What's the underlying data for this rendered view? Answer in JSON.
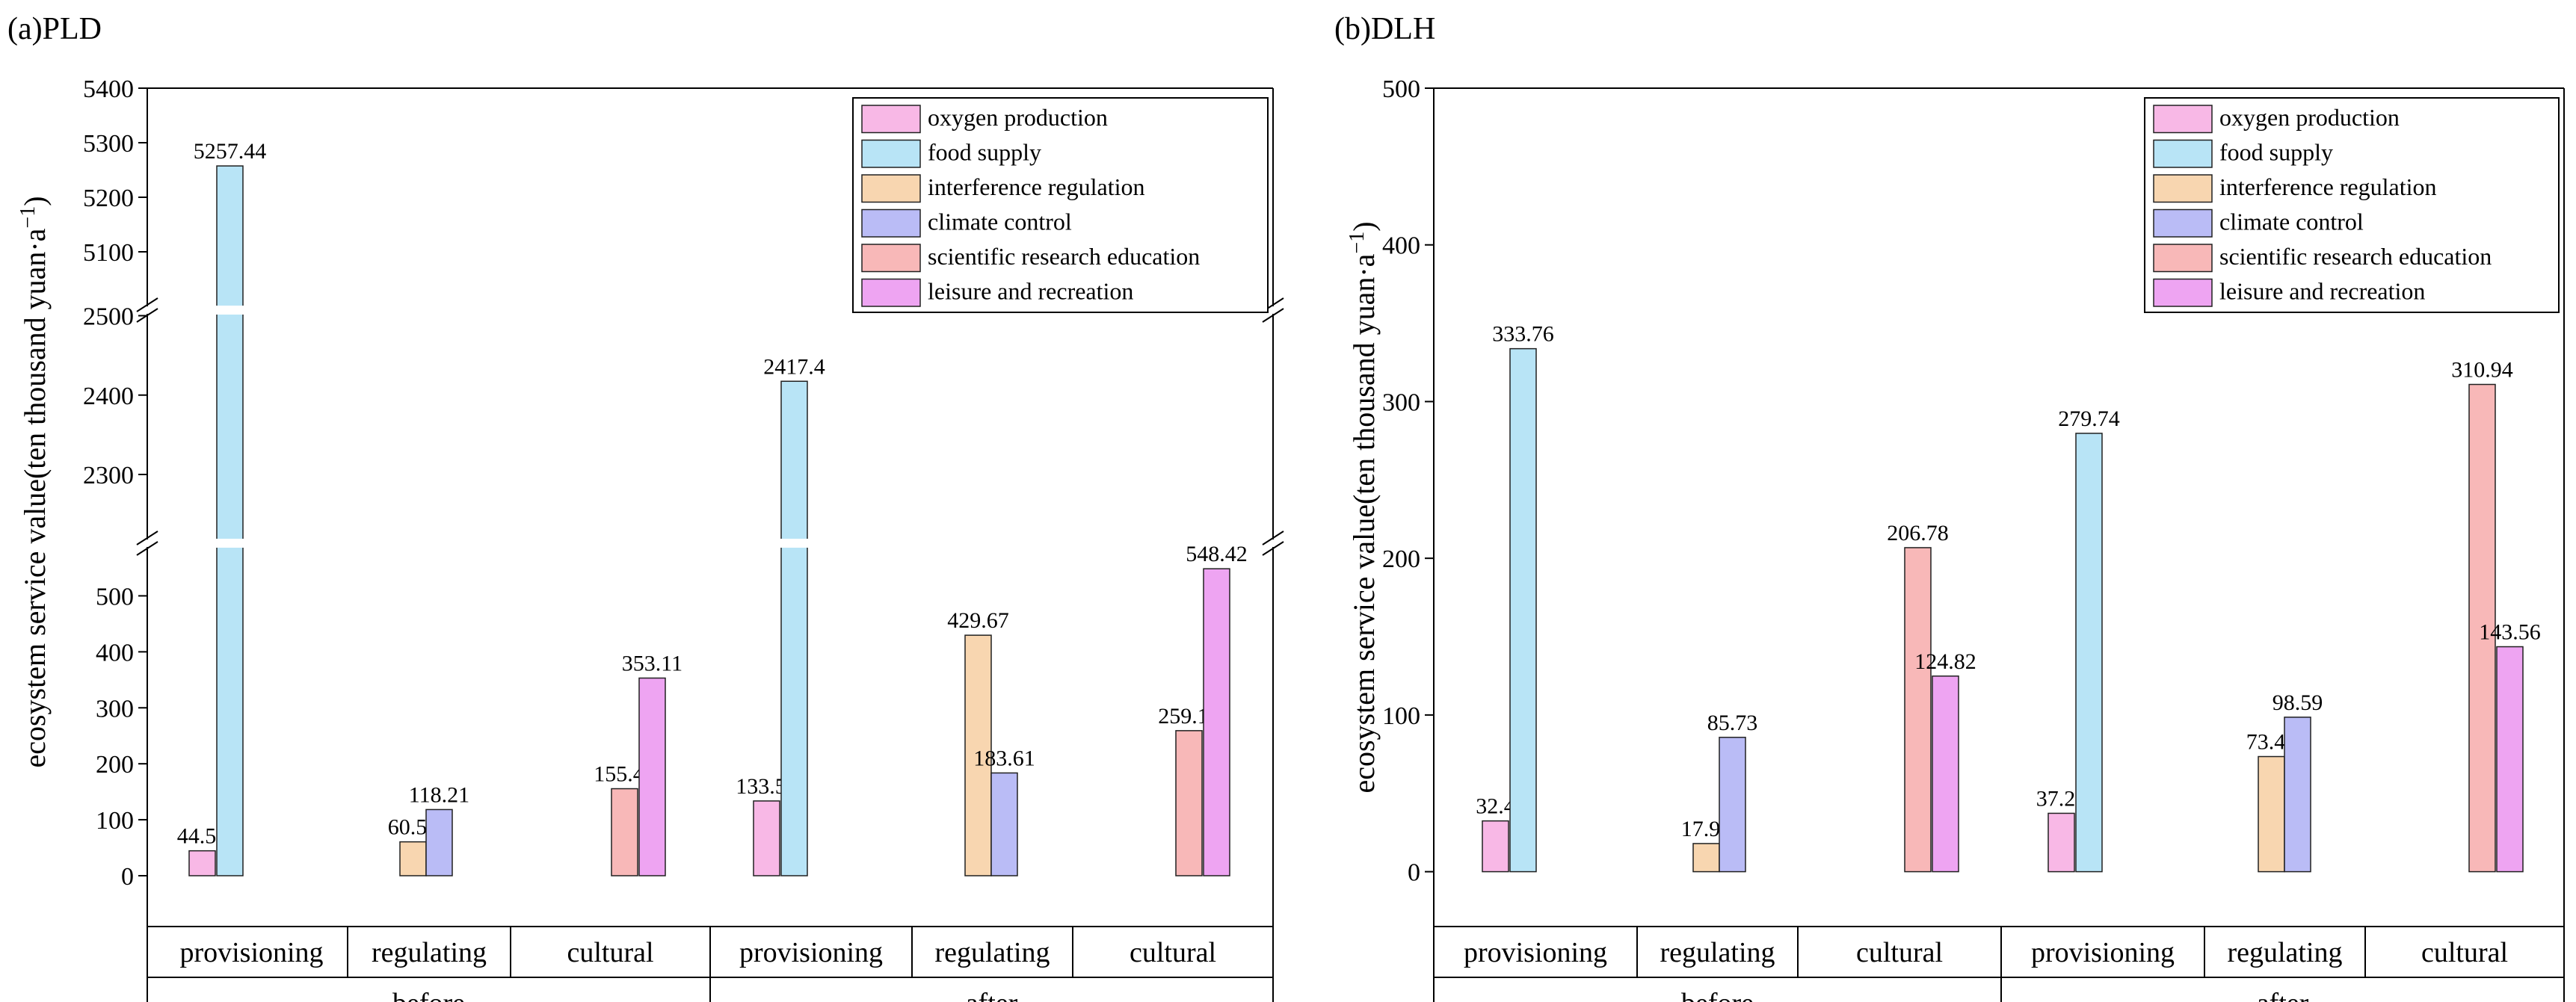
{
  "colors": {
    "oxygen production": "#f8b8e6",
    "food supply": "#b8e4f6",
    "interference regulation": "#f8d6b0",
    "climate control": "#babcf6",
    "scientific research education": "#f8b8b8",
    "leisure and recreation": "#eea4f2"
  },
  "chart_data": [
    {
      "type": "bar",
      "title": "(a)PLD",
      "ylabel": "ecosystem service value(ten thousand yuan·a",
      "ylabel_sup": "−1",
      "ylabel_close": ")",
      "axis_breaks": [
        [
          570,
          2220
        ],
        [
          2540,
          5000
        ]
      ],
      "ylim": [
        0,
        5400
      ],
      "yticks": [
        0,
        100,
        200,
        300,
        400,
        500,
        2300,
        2400,
        2500,
        5100,
        5200,
        5300,
        5400
      ],
      "legend": [
        "oxygen production",
        "food supply",
        "interference regulation",
        "climate control",
        "scientific research education",
        "leisure and recreation"
      ],
      "groups": [
        {
          "label": "before",
          "categories": [
            {
              "label": "provisioning",
              "bars": [
                {
                  "series": "oxygen production",
                  "value": 44.53,
                  "label": "44.53"
                },
                {
                  "series": "food supply",
                  "value": 5257.44,
                  "label": "5257.44"
                }
              ]
            },
            {
              "label": "regulating",
              "bars": [
                {
                  "series": "interference regulation",
                  "value": 60.53,
                  "label": "60.53"
                },
                {
                  "series": "climate control",
                  "value": 118.21,
                  "label": "118.21"
                }
              ]
            },
            {
              "label": "cultural",
              "bars": [
                {
                  "series": "scientific research education",
                  "value": 155.47,
                  "label": "155.47"
                },
                {
                  "series": "leisure and recreation",
                  "value": 353.11,
                  "label": "353.11"
                }
              ]
            }
          ]
        },
        {
          "label": "after",
          "categories": [
            {
              "label": "provisioning",
              "bars": [
                {
                  "series": "oxygen production",
                  "value": 133.58,
                  "label": "133.58"
                },
                {
                  "series": "food supply",
                  "value": 2417.4,
                  "label": "2417.4"
                }
              ]
            },
            {
              "label": "regulating",
              "bars": [
                {
                  "series": "interference regulation",
                  "value": 429.67,
                  "label": "429.67"
                },
                {
                  "series": "climate control",
                  "value": 183.61,
                  "label": "183.61"
                }
              ]
            },
            {
              "label": "cultural",
              "bars": [
                {
                  "series": "scientific research education",
                  "value": 259.17,
                  "label": "259.17"
                },
                {
                  "series": "leisure and recreation",
                  "value": 548.42,
                  "label": "548.42"
                }
              ]
            }
          ]
        }
      ]
    },
    {
      "type": "bar",
      "title": "(b)DLH",
      "ylabel": "ecosystem service value(ten thousand yuan·a",
      "ylabel_sup": "−1",
      "ylabel_close": ")",
      "axis_breaks": [],
      "ylim": [
        -35,
        500
      ],
      "yticks": [
        0,
        100,
        200,
        300,
        400,
        500
      ],
      "legend": [
        "oxygen production",
        "food supply",
        "interference regulation",
        "climate control",
        "scientific research education",
        "leisure and recreation"
      ],
      "groups": [
        {
          "label": "before",
          "categories": [
            {
              "label": "provisioning",
              "bars": [
                {
                  "series": "oxygen production",
                  "value": 32.4,
                  "label": "32.4"
                },
                {
                  "series": "food supply",
                  "value": 333.76,
                  "label": "333.76"
                }
              ]
            },
            {
              "label": "regulating",
              "bars": [
                {
                  "series": "interference regulation",
                  "value": 17.96,
                  "label": "17.96"
                },
                {
                  "series": "climate control",
                  "value": 85.73,
                  "label": "85.73"
                }
              ]
            },
            {
              "label": "cultural",
              "bars": [
                {
                  "series": "scientific research education",
                  "value": 206.78,
                  "label": "206.78"
                },
                {
                  "series": "leisure and recreation",
                  "value": 124.82,
                  "label": "124.82"
                }
              ]
            }
          ]
        },
        {
          "label": "after",
          "categories": [
            {
              "label": "provisioning",
              "bars": [
                {
                  "series": "oxygen production",
                  "value": 37.26,
                  "label": "37.26"
                },
                {
                  "series": "food supply",
                  "value": 279.74,
                  "label": "279.74"
                }
              ]
            },
            {
              "label": "regulating",
              "bars": [
                {
                  "series": "interference regulation",
                  "value": 73.47,
                  "label": "73.47"
                },
                {
                  "series": "climate control",
                  "value": 98.59,
                  "label": "98.59"
                }
              ]
            },
            {
              "label": "cultural",
              "bars": [
                {
                  "series": "scientific research education",
                  "value": 310.94,
                  "label": "310.94"
                },
                {
                  "series": "leisure and recreation",
                  "value": 143.56,
                  "label": "143.56"
                }
              ]
            }
          ]
        }
      ]
    }
  ]
}
